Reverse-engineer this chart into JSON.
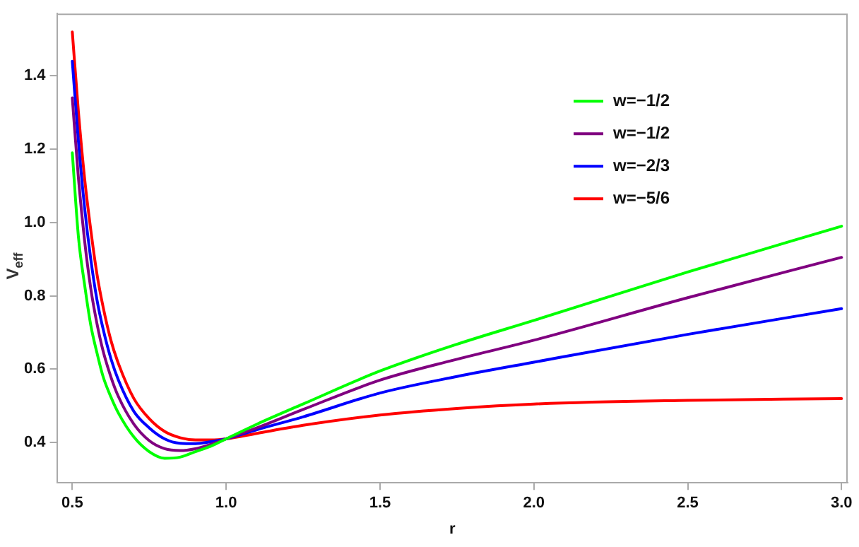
{
  "chart_data": {
    "type": "line",
    "xlabel": "r",
    "ylabel": "V$_{eff}$",
    "xlim": [
      0.45,
      3.02
    ],
    "ylim": [
      0.29,
      1.57
    ],
    "xticks": [
      0.5,
      {
        "value": 1.0,
        "label": "1.0"
      },
      1.5,
      {
        "value": 2.0,
        "label": "2.0"
      },
      2.5,
      {
        "value": 3.0,
        "label": "3.0"
      }
    ],
    "yticks": [
      0.4,
      0.6,
      0.8,
      {
        "value": 1.0,
        "label": "1.0"
      },
      1.2,
      1.4
    ],
    "x": [
      0.5,
      0.52,
      0.54,
      0.56,
      0.58,
      0.6,
      0.625,
      0.65,
      0.7,
      0.75,
      0.8,
      0.85,
      0.9,
      0.95,
      1.0,
      1.1,
      1.25,
      1.5,
      1.75,
      2.0,
      2.5,
      3.0
    ],
    "grid": false,
    "legend": "top right",
    "marker": "none",
    "line_style": "solid",
    "series": [
      {
        "name": "w=−1/2",
        "color": "#00ff00",
        "values": [
          1.19,
          0.96,
          0.83,
          0.72,
          0.645,
          0.58,
          0.525,
          0.48,
          0.415,
          0.375,
          0.357,
          0.36,
          0.375,
          0.39,
          0.41,
          0.45,
          0.505,
          0.595,
          0.668,
          0.733,
          0.865,
          0.99
        ]
      },
      {
        "name": "w=−1/2",
        "color": "#800080",
        "values": [
          1.34,
          1.12,
          0.95,
          0.82,
          0.725,
          0.65,
          0.58,
          0.525,
          0.45,
          0.405,
          0.383,
          0.378,
          0.383,
          0.395,
          0.41,
          0.44,
          0.49,
          0.57,
          0.627,
          0.679,
          0.795,
          0.905
        ]
      },
      {
        "name": "w=−2/3",
        "color": "#0000ff",
        "values": [
          1.44,
          1.22,
          1.04,
          0.9,
          0.79,
          0.71,
          0.63,
          0.57,
          0.485,
          0.44,
          0.41,
          0.398,
          0.397,
          0.402,
          0.41,
          0.435,
          0.47,
          0.535,
          0.58,
          0.619,
          0.695,
          0.765
        ]
      },
      {
        "name": "w=−5/6",
        "color": "#ff0000",
        "values": [
          1.52,
          1.3,
          1.12,
          0.98,
          0.86,
          0.77,
          0.68,
          0.615,
          0.52,
          0.465,
          0.43,
          0.413,
          0.407,
          0.407,
          0.41,
          0.425,
          0.447,
          0.475,
          0.493,
          0.505,
          0.515,
          0.52
        ]
      }
    ]
  }
}
